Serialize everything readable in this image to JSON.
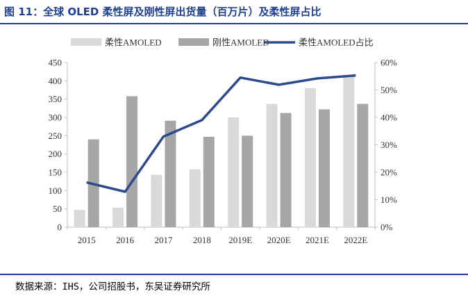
{
  "title": "图 11：全球 OLED 柔性屏及刚性屏出货量（百万片）及柔性屏占比",
  "source": "数据来源：IHS，公司招股书，东吴证券研究所",
  "colors": {
    "flexible": "#d9d9d9",
    "rigid": "#a6a6a6",
    "share": "#2c4a8c",
    "rule": "#1f3f8f"
  },
  "chart_data": {
    "type": "bar",
    "categories": [
      "2015",
      "2016",
      "2017",
      "2018",
      "2019E",
      "2020E",
      "2021E",
      "2022E"
    ],
    "series": [
      {
        "name": "柔性AMOLED",
        "type": "bar",
        "axis": "left",
        "values": [
          47,
          53,
          143,
          158,
          300,
          337,
          380,
          414
        ]
      },
      {
        "name": "刚性AMOLED",
        "type": "bar",
        "axis": "left",
        "values": [
          240,
          358,
          291,
          247,
          250,
          312,
          322,
          337
        ]
      },
      {
        "name": "柔性AMOLED占比",
        "type": "line",
        "axis": "right",
        "values": [
          16.3,
          12.9,
          33.0,
          39.0,
          54.5,
          51.9,
          54.2,
          55.3
        ]
      }
    ],
    "y_left": {
      "min": 0,
      "max": 450,
      "ticks": [
        0,
        50,
        100,
        150,
        200,
        250,
        300,
        350,
        400,
        450
      ]
    },
    "y_right": {
      "min": 0,
      "max": 60,
      "ticks": [
        "0%",
        "10%",
        "20%",
        "30%",
        "40%",
        "50%",
        "60%"
      ]
    },
    "legend": "top",
    "grid": false
  }
}
